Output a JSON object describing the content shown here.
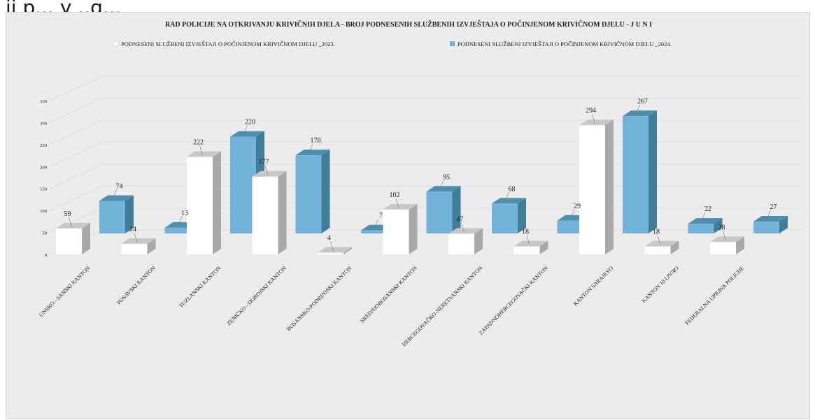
{
  "caption": "ii p...  y ..g...",
  "colors": {
    "background": "#ececec",
    "series_2023": "#ffffff",
    "series_2023_side": "#a9a9a9",
    "series_2024": "#73b3d9",
    "series_2024_side": "#3f7d99"
  },
  "chart_data": {
    "type": "bar",
    "title": "RAD POLICIJE NA OTKRIVANJU KRIVIČNIH DJELA  -  BROJ PODNESENIH SLUŽBENIH IZVJEŠTAJA O POČINJENOM KRIVIČNOM DJELU -  J U N I",
    "xlabel": "",
    "ylabel": "",
    "ylim": [
      0,
      350
    ],
    "yticks": [
      "0",
      "50",
      "100",
      "150",
      "200",
      "250",
      "300",
      "350"
    ],
    "grid": true,
    "legend_position": "top",
    "style": "3d-clustered-column",
    "categories": [
      "UNSKO - SANSKI KANTON",
      "POSAVSKI KANTON",
      "TUZLANSKI KANTON",
      "ZENIČKO - DOBOJSKI KANTON",
      "BOSANSKO-PODRINJSKI KANTON",
      "SREDNJOBOSANSKI KANTON",
      "HERCEGOVAČKO-NERETVANSKI KANTON",
      "ZAPADNOHERCEGOVAČKI KANTON",
      "KANTON SARAJEVO",
      "KANTON 10 LIVNO",
      "FEDERALNA UPRAVA POLICIJE"
    ],
    "series": [
      {
        "name": "PODNESENI SLUŽBENI IZVJEŠTAJI O POČINJENOM KRIVIČNOM DJELU _2023.",
        "values": [
          59,
          24,
          222,
          177,
          4,
          102,
          47,
          18,
          294,
          18,
          28
        ]
      },
      {
        "name": "PODNESENI SLUŽBENI IZVJEŠTAJI O POČINJENOM KRIVIČNOM DJELU _2024.",
        "values": [
          74,
          13,
          220,
          178,
          7,
          95,
          68,
          29,
          267,
          22,
          27
        ]
      }
    ]
  }
}
